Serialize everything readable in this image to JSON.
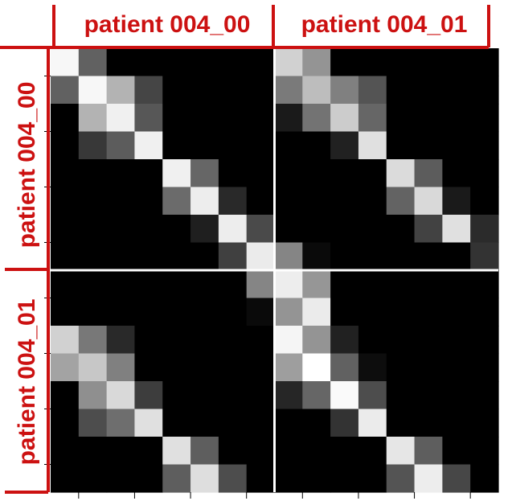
{
  "chart_data": {
    "type": "heatmap",
    "title": "",
    "x_groups": [
      "patient 004_00",
      "patient 004_01"
    ],
    "y_groups": [
      "patient 004_00",
      "patient 004_01"
    ],
    "grid_size": 16,
    "value_range": [
      0,
      1
    ],
    "colormap": "gray",
    "accent_color": "#cc1111",
    "values": [
      [
        0.97,
        0.38,
        0,
        0,
        0,
        0,
        0,
        0,
        0.82,
        0.58,
        0,
        0,
        0,
        0,
        0,
        0
      ],
      [
        0.38,
        0.97,
        0.7,
        0.27,
        0,
        0,
        0,
        0,
        0.48,
        0.74,
        0.5,
        0.33,
        0,
        0,
        0,
        0
      ],
      [
        0,
        0.7,
        0.94,
        0.34,
        0,
        0,
        0,
        0,
        0.1,
        0.45,
        0.8,
        0.4,
        0,
        0,
        0,
        0
      ],
      [
        0,
        0.22,
        0.36,
        0.94,
        0,
        0,
        0,
        0,
        0,
        0,
        0.13,
        0.88,
        0,
        0,
        0,
        0
      ],
      [
        0,
        0,
        0,
        0,
        0.94,
        0.4,
        0,
        0,
        0,
        0,
        0,
        0,
        0.86,
        0.36,
        0,
        0
      ],
      [
        0,
        0,
        0,
        0,
        0.42,
        0.93,
        0.16,
        0,
        0,
        0,
        0,
        0,
        0.39,
        0.85,
        0.1,
        0
      ],
      [
        0,
        0,
        0,
        0,
        0,
        0.12,
        0.93,
        0.29,
        0,
        0,
        0,
        0,
        0,
        0.26,
        0.88,
        0.17
      ],
      [
        0,
        0,
        0,
        0,
        0,
        0,
        0.25,
        0.92,
        0.52,
        0.04,
        0,
        0,
        0,
        0,
        0,
        0.2
      ],
      [
        0,
        0,
        0,
        0,
        0,
        0,
        0,
        0.52,
        0.93,
        0.59,
        0,
        0,
        0,
        0,
        0,
        0
      ],
      [
        0,
        0,
        0,
        0,
        0,
        0,
        0,
        0.04,
        0.58,
        0.92,
        0,
        0,
        0,
        0,
        0,
        0
      ],
      [
        0.82,
        0.47,
        0.16,
        0,
        0,
        0,
        0,
        0,
        0.96,
        0.58,
        0.13,
        0,
        0,
        0,
        0,
        0
      ],
      [
        0.64,
        0.78,
        0.5,
        0,
        0,
        0,
        0,
        0,
        0.62,
        1.0,
        0.38,
        0.05,
        0,
        0,
        0,
        0
      ],
      [
        0,
        0.56,
        0.85,
        0.24,
        0,
        0,
        0,
        0,
        0.15,
        0.4,
        0.98,
        0.3,
        0,
        0,
        0,
        0
      ],
      [
        0,
        0.3,
        0.43,
        0.88,
        0,
        0,
        0,
        0,
        0,
        0,
        0.2,
        0.92,
        0,
        0,
        0,
        0
      ],
      [
        0,
        0,
        0,
        0,
        0.88,
        0.37,
        0,
        0,
        0,
        0,
        0,
        0,
        0.9,
        0.37,
        0,
        0
      ],
      [
        0,
        0,
        0,
        0,
        0.37,
        0.87,
        0.3,
        0,
        0,
        0,
        0,
        0,
        0.33,
        0.93,
        0.28,
        0
      ]
    ]
  }
}
